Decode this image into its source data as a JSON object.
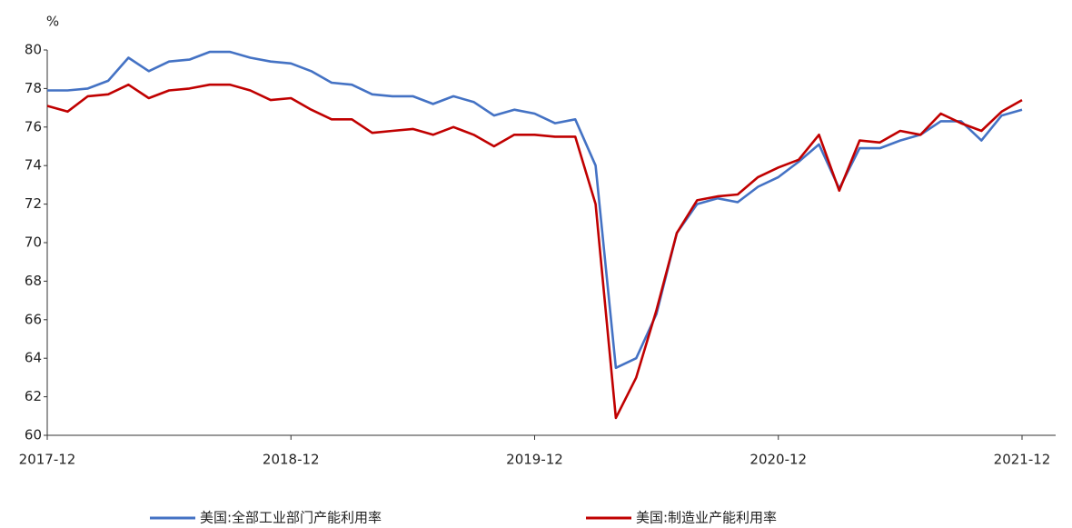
{
  "chart_data": {
    "type": "line",
    "y_label": "%",
    "categories": [
      "2017-12",
      null,
      null,
      null,
      null,
      null,
      null,
      null,
      null,
      null,
      null,
      null,
      "2018-12",
      null,
      null,
      null,
      null,
      null,
      null,
      null,
      null,
      null,
      null,
      null,
      "2019-12",
      null,
      null,
      null,
      null,
      null,
      null,
      null,
      null,
      null,
      null,
      null,
      "2020-12",
      null,
      null,
      null,
      null,
      null,
      null,
      null,
      null,
      null,
      null,
      null,
      "2021-12"
    ],
    "series": [
      {
        "name": "美国:全部工业部门产能利用率",
        "color": "#4472c4",
        "values": [
          77.9,
          77.9,
          78.0,
          78.4,
          79.6,
          78.9,
          79.4,
          79.5,
          79.9,
          79.9,
          79.6,
          79.4,
          79.3,
          78.9,
          78.3,
          78.2,
          77.7,
          77.6,
          77.6,
          77.2,
          77.6,
          77.3,
          76.6,
          76.9,
          76.7,
          76.2,
          76.4,
          74.0,
          63.5,
          64.0,
          66.3,
          70.5,
          72.0,
          72.3,
          72.1,
          72.9,
          73.4,
          74.2,
          75.1,
          72.8,
          74.9,
          74.9,
          75.3,
          75.6,
          76.3,
          76.3,
          75.3,
          76.6,
          76.9
        ]
      },
      {
        "name": "美国:制造业产能利用率",
        "color": "#c00000",
        "values": [
          77.1,
          76.8,
          77.6,
          77.7,
          78.2,
          77.5,
          77.9,
          78.0,
          78.2,
          78.2,
          77.9,
          77.4,
          77.5,
          76.9,
          76.4,
          76.4,
          75.7,
          75.8,
          75.9,
          75.6,
          76.0,
          75.6,
          75.0,
          75.6,
          75.6,
          75.5,
          75.5,
          72.0,
          60.9,
          63.0,
          66.5,
          70.5,
          72.2,
          72.4,
          72.5,
          73.4,
          73.9,
          74.3,
          75.6,
          72.7,
          75.3,
          75.2,
          75.8,
          75.6,
          76.7,
          76.2,
          75.8,
          76.8,
          77.4
        ]
      }
    ],
    "ylim": [
      60,
      80
    ],
    "yticks": [
      60,
      62,
      64,
      66,
      68,
      70,
      72,
      74,
      76,
      78,
      80
    ],
    "grid": false,
    "legend": "bottom"
  }
}
